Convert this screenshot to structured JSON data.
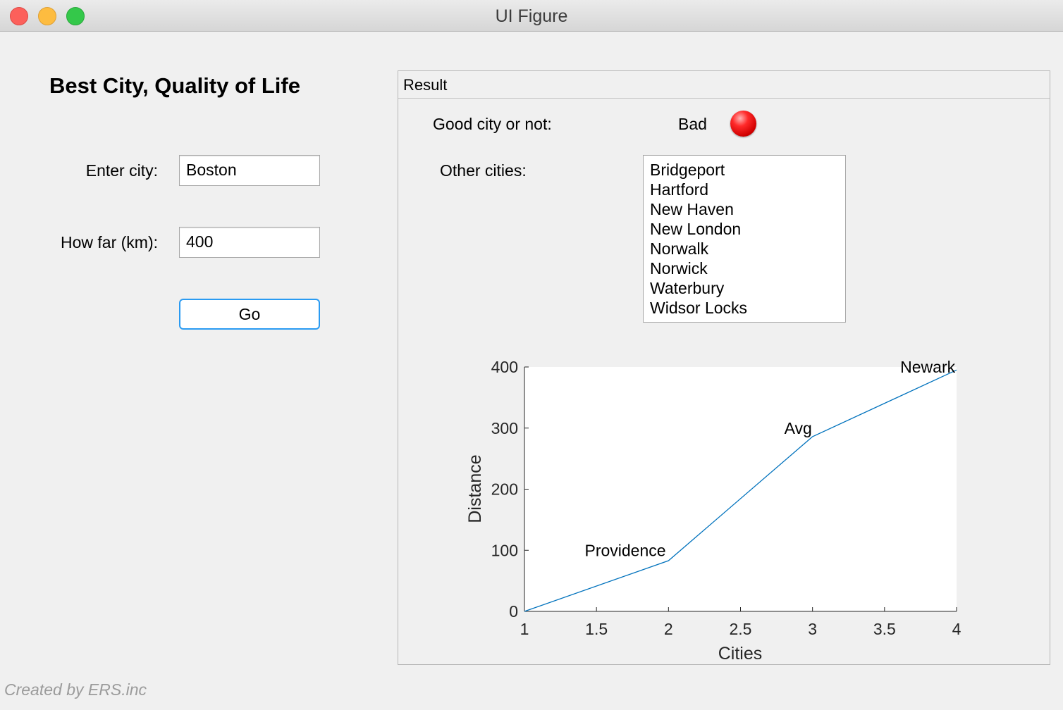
{
  "window": {
    "title": "UI Figure"
  },
  "app": {
    "title": "Best City, Quality of Life"
  },
  "form": {
    "city_label": "Enter city:",
    "city_value": "Boston",
    "distance_label": "How far (km):",
    "distance_value": "400",
    "go_label": "Go"
  },
  "result": {
    "panel_title": "Result",
    "good_label": "Good city or not:",
    "good_value": "Bad",
    "lamp_color": "#ff0000",
    "other_label": "Other cities:",
    "other_cities": [
      "Bridgeport",
      "Hartford",
      "New Haven",
      "New London",
      "Norwalk",
      "Norwick",
      "Waterbury",
      "Widsor Locks"
    ]
  },
  "chart_data": {
    "type": "line",
    "x": [
      1,
      2,
      3,
      4
    ],
    "y": [
      0,
      83,
      286,
      395
    ],
    "xlabel": "Cities",
    "ylabel": "Distance",
    "xlim": [
      1,
      4
    ],
    "ylim": [
      0,
      400
    ],
    "xticks": [
      1,
      1.5,
      2,
      2.5,
      3,
      3.5,
      4
    ],
    "xtick_labels": [
      "1",
      "1.5",
      "2",
      "2.5",
      "3",
      "3.5",
      "4"
    ],
    "yticks": [
      0,
      100,
      200,
      300,
      400
    ],
    "ytick_labels": [
      "0",
      "100",
      "200",
      "300",
      "400"
    ],
    "grid": false,
    "line_color": "#0072bd",
    "annotations": [
      {
        "text": "Providence",
        "x": 1.7,
        "y": 100
      },
      {
        "text": "Avg",
        "x": 2.9,
        "y": 300
      },
      {
        "text": "Newark",
        "x": 3.8,
        "y": 400
      }
    ]
  },
  "footer": "Created by ERS.inc"
}
